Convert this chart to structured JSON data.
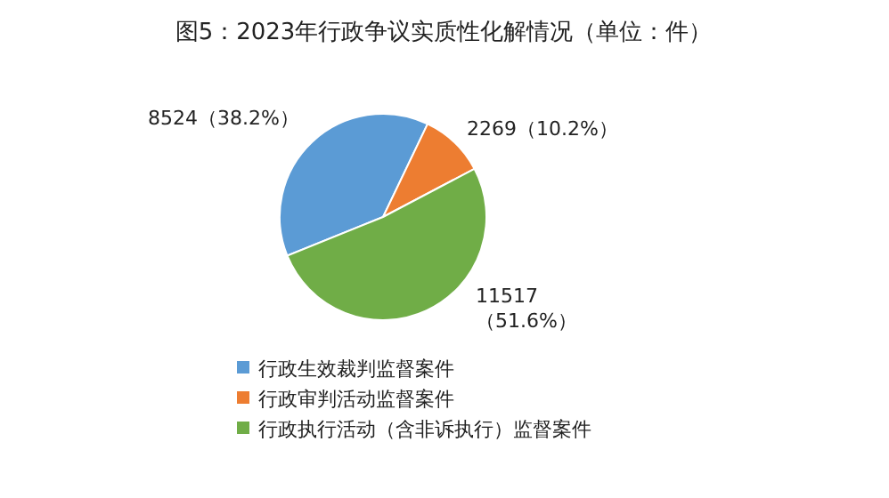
{
  "chart_data": {
    "type": "pie",
    "title": "图5：2023年行政争议实质性化解情况（单位：件）",
    "categories": [
      "行政生效裁判监督案件",
      "行政审判活动监督案件",
      "行政执行活动（含非诉执行）监督案件"
    ],
    "values": [
      8524,
      2269,
      11517
    ],
    "colors": [
      "#5b9bd5",
      "#ed7d31",
      "#70ad47"
    ],
    "value_labels": [
      "8524（38.2%）",
      "2269（10.2%）",
      "11517\n（51.6%）"
    ],
    "legend": "bottom"
  }
}
